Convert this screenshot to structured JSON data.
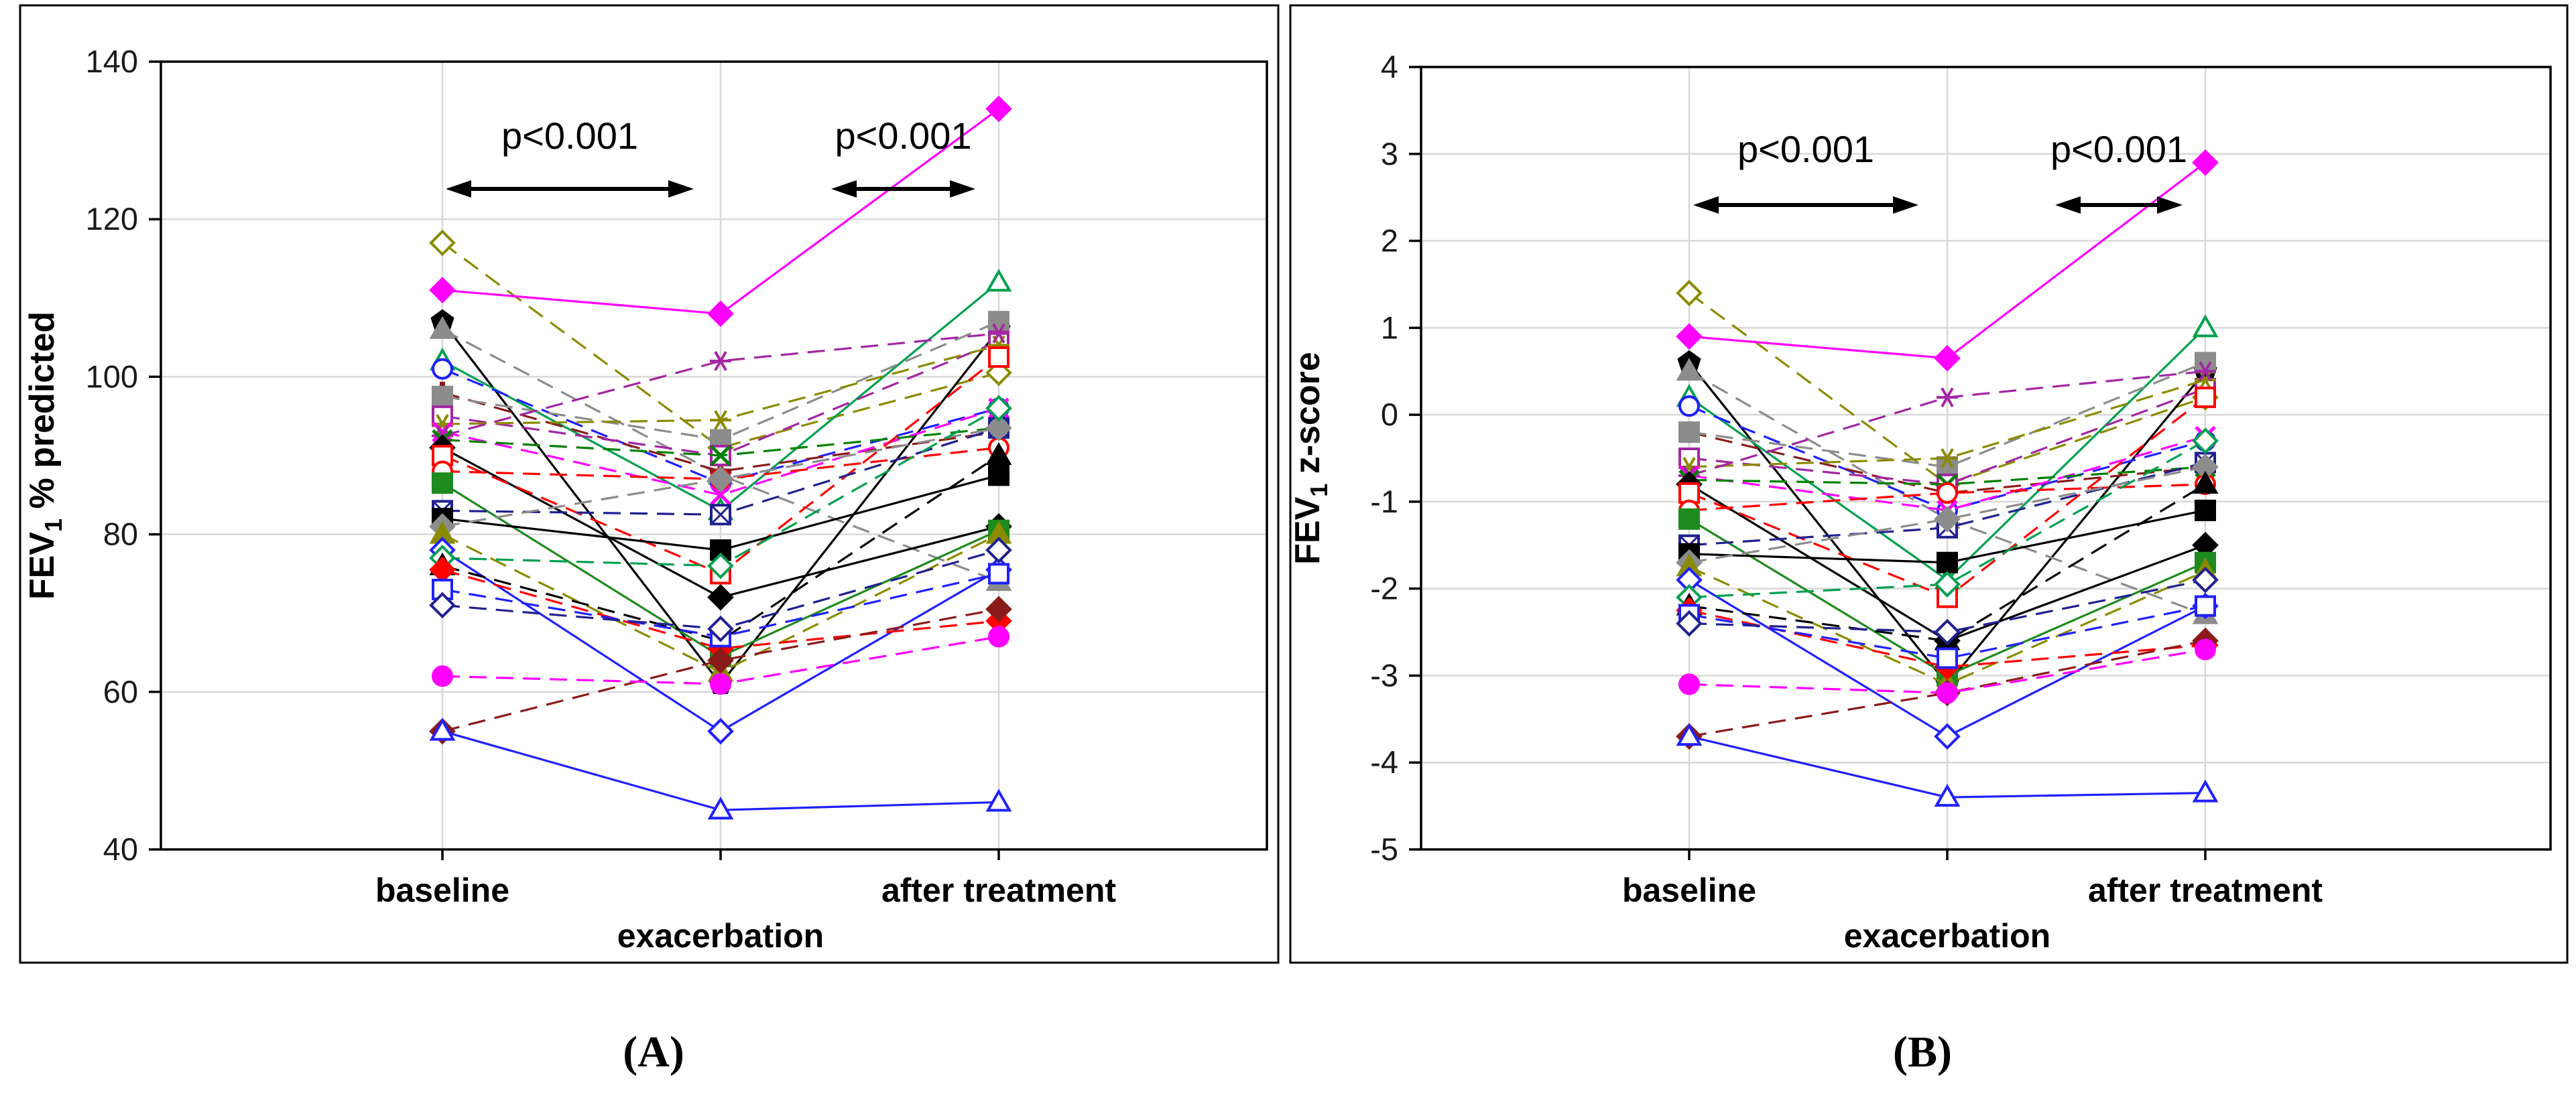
{
  "figure": {
    "captions": {
      "panel_a": "(A)",
      "panel_b": "(B)"
    }
  },
  "chart_data": {
    "type": "line",
    "categories": [
      "baseline",
      "exacerbation",
      "after treatment"
    ],
    "panels": [
      {
        "id": "A",
        "caption": "(A)",
        "ylabel": {
          "prefix": "FEV",
          "sub": "1",
          "suffix": " % predicted"
        },
        "ylim": [
          40,
          140
        ],
        "yticks": [
          40,
          60,
          80,
          100,
          120,
          140
        ],
        "value_key": "pct",
        "annotations": [
          {
            "text": "p<0.001",
            "between": [
              0,
              1
            ]
          },
          {
            "text": "p<0.001",
            "between": [
              1,
              2
            ]
          }
        ]
      },
      {
        "id": "B",
        "caption": "(B)",
        "ylabel": {
          "prefix": "FEV",
          "sub": "1",
          "suffix": " z-score"
        },
        "ylim": [
          -5,
          4
        ],
        "yticks": [
          -5,
          -4,
          -3,
          -2,
          -1,
          0,
          1,
          2,
          3,
          4
        ],
        "value_key": "z",
        "annotations": [
          {
            "text": "p<0.001",
            "between": [
              0,
              1
            ]
          },
          {
            "text": "p<0.001",
            "between": [
              1,
              2
            ]
          }
        ]
      }
    ],
    "grid": true,
    "legend": "none",
    "series": [
      {
        "name": "olive-diamond",
        "color": "#8B8B00",
        "marker": "diamond",
        "filled": false,
        "dash": true,
        "pct": [
          117,
          91,
          100.5
        ],
        "z": [
          1.4,
          -0.8,
          0.2
        ]
      },
      {
        "name": "magenta-diamond",
        "color": "#FF00FF",
        "marker": "diamond",
        "filled": true,
        "dash": false,
        "pct": [
          111,
          108,
          134
        ],
        "z": [
          0.9,
          0.65,
          2.9
        ]
      },
      {
        "name": "black-pentagon",
        "color": "#000000",
        "marker": "pentagon",
        "filled": true,
        "dash": false,
        "pct": [
          107,
          61,
          106
        ],
        "z": [
          0.6,
          -3.1,
          0.5
        ]
      },
      {
        "name": "gray-triangle",
        "color": "#8C8C8C",
        "marker": "triangle",
        "filled": true,
        "dash": true,
        "pct": [
          106,
          87.5,
          74
        ],
        "z": [
          0.5,
          -1.2,
          -2.3
        ]
      },
      {
        "name": "green-triangle",
        "color": "#00A050",
        "marker": "triangle",
        "filled": false,
        "dash": false,
        "pct": [
          102,
          83,
          112
        ],
        "z": [
          0.2,
          -1.9,
          1.0
        ]
      },
      {
        "name": "blue-circle",
        "color": "#2020FF",
        "marker": "circle",
        "filled": false,
        "dash": true,
        "pct": [
          101,
          86.5,
          96
        ],
        "z": [
          0.1,
          -1.1,
          -0.3
        ]
      },
      {
        "name": "darkred-cross",
        "color": "#8B1A1A",
        "marker": "cross",
        "filled": true,
        "dash": true,
        "pct": [
          98,
          88,
          93
        ],
        "z": [
          -0.2,
          -0.9,
          -0.6
        ]
      },
      {
        "name": "gray-square",
        "color": "#8C8C8C",
        "marker": "square",
        "filled": true,
        "dash": true,
        "pct": [
          97.5,
          92,
          107
        ],
        "z": [
          -0.2,
          -0.6,
          0.6
        ]
      },
      {
        "name": "purple-square",
        "color": "#A326A3",
        "marker": "square",
        "filled": false,
        "dash": true,
        "pct": [
          95,
          90,
          104.5
        ],
        "z": [
          -0.5,
          -0.8,
          0.3
        ]
      },
      {
        "name": "olive-star",
        "color": "#8B8B00",
        "marker": "star",
        "filled": false,
        "dash": true,
        "pct": [
          94,
          94.5,
          104
        ],
        "z": [
          -0.6,
          -0.5,
          0.4
        ]
      },
      {
        "name": "magenta-x",
        "color": "#FF00FF",
        "marker": "x",
        "filled": false,
        "dash": true,
        "pct": [
          93,
          85,
          96
        ],
        "z": [
          -0.7,
          -1.1,
          -0.25
        ]
      },
      {
        "name": "purple-star",
        "color": "#A326A3",
        "marker": "star",
        "filled": false,
        "dash": true,
        "pct": [
          92.5,
          102,
          105.5
        ],
        "z": [
          -0.7,
          0.2,
          0.5
        ]
      },
      {
        "name": "green-x",
        "color": "#008000",
        "marker": "x",
        "filled": false,
        "dash": true,
        "pct": [
          92,
          90,
          93.5
        ],
        "z": [
          -0.75,
          -0.8,
          -0.6
        ]
      },
      {
        "name": "black-diamond",
        "color": "#000000",
        "marker": "diamond",
        "filled": true,
        "dash": false,
        "pct": [
          91,
          72,
          81
        ],
        "z": [
          -0.8,
          -2.6,
          -1.5
        ]
      },
      {
        "name": "red-square",
        "color": "#FF0000",
        "marker": "square",
        "filled": false,
        "dash": true,
        "pct": [
          90,
          75,
          102.5
        ],
        "z": [
          -0.9,
          -2.1,
          0.2
        ]
      },
      {
        "name": "red-circle",
        "color": "#FF0000",
        "marker": "circle",
        "filled": false,
        "dash": true,
        "pct": [
          88,
          87,
          91
        ],
        "z": [
          -1.1,
          -0.9,
          -0.8
        ]
      },
      {
        "name": "green-square",
        "color": "#1F8A1F",
        "marker": "square",
        "filled": true,
        "dash": false,
        "pct": [
          86.5,
          64.5,
          80.5
        ],
        "z": [
          -1.2,
          -3.0,
          -1.7
        ]
      },
      {
        "name": "navy-square-x",
        "color": "#202090",
        "marker": "square-x",
        "filled": false,
        "dash": true,
        "pct": [
          83,
          82.5,
          93.5
        ],
        "z": [
          -1.5,
          -1.3,
          -0.55
        ]
      },
      {
        "name": "black-square",
        "color": "#000000",
        "marker": "square",
        "filled": true,
        "dash": false,
        "pct": [
          82,
          78,
          87.5
        ],
        "z": [
          -1.6,
          -1.7,
          -1.1
        ]
      },
      {
        "name": "gray-diamond",
        "color": "#8C8C8C",
        "marker": "diamond",
        "filled": true,
        "dash": true,
        "pct": [
          81,
          87,
          93.5
        ],
        "z": [
          -1.7,
          -1.2,
          -0.6
        ]
      },
      {
        "name": "olive-triangle",
        "color": "#8B8B00",
        "marker": "triangle",
        "filled": true,
        "dash": true,
        "pct": [
          80,
          62.5,
          80
        ],
        "z": [
          -1.75,
          -3.1,
          -1.8
        ]
      },
      {
        "name": "blue-diamond",
        "color": "#2020FF",
        "marker": "diamond",
        "filled": false,
        "dash": false,
        "pct": [
          78,
          55,
          75.5
        ],
        "z": [
          -1.9,
          -3.7,
          -2.2
        ]
      },
      {
        "name": "green-diamond",
        "color": "#00A050",
        "marker": "diamond",
        "filled": false,
        "dash": true,
        "pct": [
          77,
          76,
          96
        ],
        "z": [
          -2.1,
          -1.95,
          -0.3
        ]
      },
      {
        "name": "black-triangle",
        "color": "#000000",
        "marker": "triangle",
        "filled": true,
        "dash": true,
        "pct": [
          76,
          66.5,
          90
        ],
        "z": [
          -2.2,
          -2.6,
          -0.8
        ]
      },
      {
        "name": "red-diamond",
        "color": "#FF0000",
        "marker": "diamond",
        "filled": true,
        "dash": true,
        "pct": [
          75.5,
          65.5,
          69
        ],
        "z": [
          -2.25,
          -2.9,
          -2.65
        ]
      },
      {
        "name": "blue-square",
        "color": "#2020FF",
        "marker": "square",
        "filled": false,
        "dash": true,
        "pct": [
          73,
          67,
          75
        ],
        "z": [
          -2.3,
          -2.8,
          -2.2
        ]
      },
      {
        "name": "navy-diamond",
        "color": "#202090",
        "marker": "diamond",
        "filled": false,
        "dash": true,
        "pct": [
          71,
          68,
          78
        ],
        "z": [
          -2.4,
          -2.5,
          -1.9
        ]
      },
      {
        "name": "darkred-diamond",
        "color": "#8B1A1A",
        "marker": "diamond",
        "filled": true,
        "dash": true,
        "pct": [
          55,
          64,
          70.5
        ],
        "z": [
          -3.7,
          -3.2,
          -2.6
        ]
      },
      {
        "name": "magenta-circle",
        "color": "#FF00FF",
        "marker": "circle",
        "filled": true,
        "dash": true,
        "pct": [
          62,
          61,
          67
        ],
        "z": [
          -3.1,
          -3.2,
          -2.7
        ]
      },
      {
        "name": "blue-triangle",
        "color": "#2020FF",
        "marker": "triangle",
        "filled": false,
        "dash": false,
        "pct": [
          55,
          45,
          46
        ],
        "z": [
          -3.7,
          -4.4,
          -4.35
        ]
      }
    ],
    "colors": {
      "grid": "#D8D8D8",
      "axis": "#000000",
      "text": "#1A1A1A"
    }
  }
}
